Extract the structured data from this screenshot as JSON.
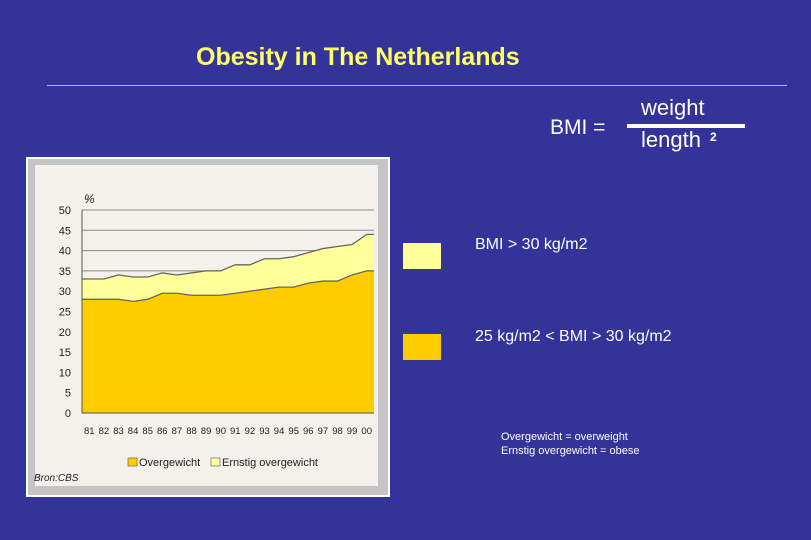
{
  "slide": {
    "title": "Obesity in The Netherlands",
    "bmi_label": "BMI =",
    "bmi_numerator": "weight",
    "bmi_denominator": "length",
    "bmi_exponent": "2",
    "legend": [
      {
        "label": "BMI > 30 kg/m2",
        "color": "#ffff99"
      },
      {
        "label": "25 kg/m2 < BMI > 30 kg/m2",
        "color": "#ffcc00"
      }
    ],
    "notes": [
      "Overgewicht = overweight",
      "Ernstig overgewicht = obese"
    ]
  },
  "chart_data": {
    "type": "area",
    "stacked": true,
    "ylabel": "%",
    "ylim": [
      0,
      50
    ],
    "yticks": [
      0,
      5,
      10,
      15,
      20,
      25,
      30,
      35,
      40,
      45,
      50
    ],
    "grid": "horizontal",
    "x": [
      "81",
      "82",
      "83",
      "84",
      "85",
      "86",
      "87",
      "88",
      "89",
      "90",
      "91",
      "92",
      "93",
      "94",
      "95",
      "96",
      "97",
      "98",
      "99",
      "00"
    ],
    "series": [
      {
        "name": "Overgewicht",
        "color": "#ffcc00",
        "values": [
          28,
          28,
          28,
          27.5,
          28,
          29.5,
          29.5,
          29,
          29,
          29,
          29.5,
          30,
          30.5,
          31,
          31,
          32,
          32.5,
          32.5,
          34,
          35
        ]
      },
      {
        "name": "Ernstig overgewicht",
        "color": "#ffff99",
        "values": [
          5,
          5,
          6,
          6,
          5.5,
          5,
          4.5,
          5.5,
          6,
          6,
          7,
          6.5,
          7.5,
          7,
          7.5,
          7.5,
          8,
          8.5,
          7.5,
          9
        ]
      }
    ],
    "legend_position": "bottom",
    "source": "Bron:CBS"
  }
}
